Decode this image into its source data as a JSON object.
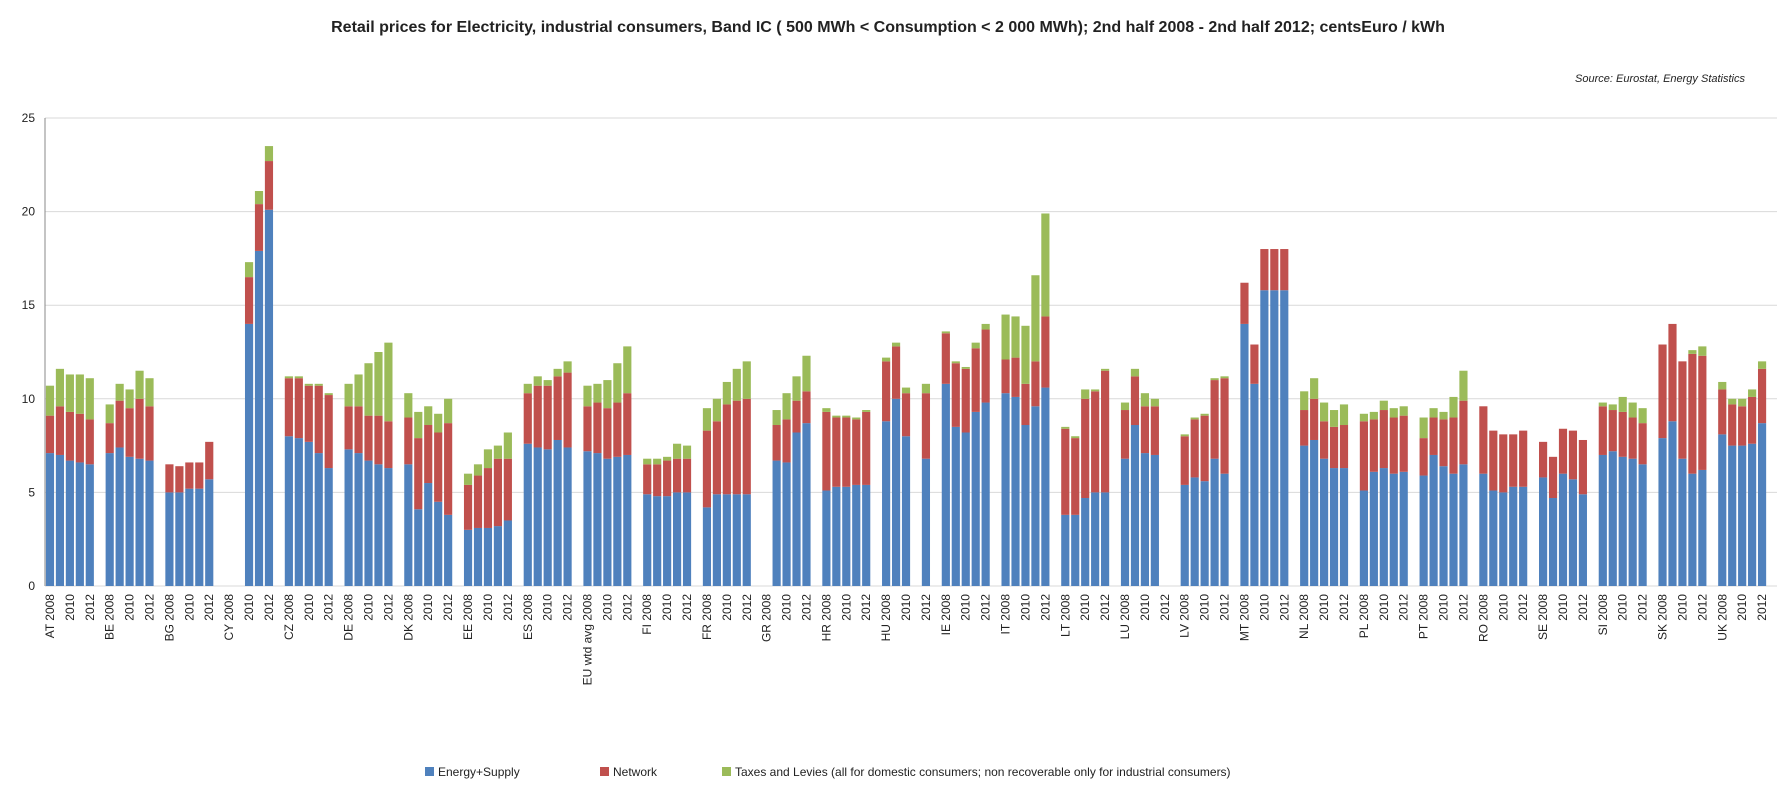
{
  "chart_data": {
    "type": "stacked_bar",
    "title": "Retail prices for Electricity, industrial consumers, Band IC ( 500 MWh < Consumption < 2 000 MWh); 2nd half 2008 - 2nd half 2012; centsEuro / kWh",
    "source": "Source: Eurostat, Energy Statistics",
    "categories": [
      "AT 2008",
      null,
      "2010",
      null,
      "2012",
      null,
      "BE 2008",
      null,
      "2010",
      null,
      "2012",
      null,
      "BG 2008",
      null,
      "2010",
      null,
      "2012",
      null,
      "CY 2008",
      null,
      "2010",
      null,
      "2012",
      null,
      "CZ 2008",
      null,
      "2010",
      null,
      "2012",
      null,
      "DE 2008",
      null,
      "2010",
      null,
      "2012",
      null,
      "DK 2008",
      null,
      "2010",
      null,
      "2012",
      null,
      "EE 2008",
      null,
      "2010",
      null,
      "2012",
      null,
      "ES 2008",
      null,
      "2010",
      null,
      "2012",
      null,
      "EU wtd avg 2008",
      null,
      "2010",
      null,
      "2012",
      null,
      "FI 2008",
      null,
      "2010",
      null,
      "2012",
      null,
      "FR 2008",
      null,
      "2010",
      null,
      "2012",
      null,
      "GR 2008",
      null,
      "2010",
      null,
      "2012",
      null,
      "HR 2008",
      null,
      "2010",
      null,
      "2012",
      null,
      "HU 2008",
      null,
      "2010",
      null,
      "2012",
      null,
      "IE 2008",
      null,
      "2010",
      null,
      "2012",
      null,
      "IT 2008",
      null,
      "2010",
      null,
      "2012",
      null,
      "LT 2008",
      null,
      "2010",
      null,
      "2012",
      null,
      "LU 2008",
      null,
      "2010",
      null,
      "2012",
      null,
      "LV 2008",
      null,
      "2010",
      null,
      "2012",
      null,
      "MT 2008",
      null,
      "2010",
      null,
      "2012",
      null,
      "NL 2008",
      null,
      "2010",
      null,
      "2012",
      null,
      "PL 2008",
      null,
      "2010",
      null,
      "2012",
      null,
      "PT 2008",
      null,
      "2010",
      null,
      "2012",
      null,
      "RO 2008",
      null,
      "2010",
      null,
      "2012",
      null,
      "SE 2008",
      null,
      "2010",
      null,
      "2012",
      null,
      "SI 2008",
      null,
      "2010",
      null,
      "2012",
      null,
      "SK 2008",
      null,
      "2010",
      null,
      "2012",
      null,
      "UK 2008",
      null,
      "2010",
      null,
      "2012",
      null
    ],
    "series": [
      {
        "name": "Energy+Supply",
        "color": "#4f81bd",
        "values": [
          7.1,
          7.0,
          6.7,
          6.6,
          6.5,
          null,
          7.1,
          7.4,
          6.9,
          6.8,
          6.7,
          null,
          5.0,
          5.0,
          5.2,
          5.2,
          5.7,
          null,
          null,
          null,
          14.0,
          17.9,
          20.1,
          null,
          8.0,
          7.9,
          7.7,
          7.1,
          6.3,
          null,
          7.3,
          7.1,
          6.7,
          6.5,
          6.3,
          null,
          6.5,
          4.1,
          5.5,
          4.5,
          3.8,
          null,
          3.0,
          3.1,
          3.1,
          3.2,
          3.5,
          null,
          7.6,
          7.4,
          7.3,
          7.8,
          7.4,
          null,
          7.2,
          7.1,
          6.8,
          6.9,
          7.0,
          null,
          4.9,
          4.8,
          4.8,
          5.0,
          5.0,
          null,
          4.2,
          4.9,
          4.9,
          4.9,
          4.9,
          null,
          null,
          6.7,
          6.6,
          8.2,
          8.7,
          null,
          5.1,
          5.3,
          5.3,
          5.4,
          5.4,
          null,
          8.8,
          10.0,
          8.0,
          null,
          6.8,
          null,
          10.8,
          8.5,
          8.2,
          9.3,
          9.8,
          null,
          10.3,
          10.1,
          8.6,
          9.6,
          10.6,
          null,
          3.8,
          3.8,
          4.7,
          5.0,
          5.0,
          null,
          6.8,
          8.6,
          7.1,
          7.0,
          null,
          null,
          5.4,
          5.8,
          5.6,
          6.8,
          6.0,
          null,
          14.0,
          10.8,
          15.8,
          15.8,
          15.8,
          null,
          7.5,
          7.8,
          6.8,
          6.3,
          6.3,
          null,
          5.1,
          6.1,
          6.3,
          6.0,
          6.1,
          null,
          5.9,
          7.0,
          6.4,
          6.0,
          6.5,
          null,
          6.0,
          5.1,
          5.0,
          5.3,
          5.3,
          null,
          5.8,
          4.7,
          6.0,
          5.7,
          4.9,
          null,
          7.0,
          7.2,
          6.9,
          6.8,
          6.5,
          null,
          7.9,
          8.8,
          6.8,
          6.0,
          6.2,
          null,
          8.1,
          7.5,
          7.5,
          7.6,
          8.7,
          null
        ]
      },
      {
        "name": "Network",
        "color": "#c0504d",
        "values": [
          2.0,
          2.6,
          2.6,
          2.6,
          2.4,
          null,
          1.6,
          2.5,
          2.6,
          3.2,
          2.9,
          null,
          1.5,
          1.4,
          1.4,
          1.4,
          2.0,
          null,
          null,
          null,
          2.5,
          2.5,
          2.6,
          null,
          3.1,
          3.2,
          3.0,
          3.6,
          3.9,
          null,
          2.3,
          2.5,
          2.4,
          2.6,
          2.5,
          null,
          2.5,
          3.8,
          3.1,
          3.7,
          4.9,
          null,
          2.4,
          2.8,
          3.2,
          3.6,
          3.3,
          null,
          2.7,
          3.3,
          3.4,
          3.4,
          4.0,
          null,
          2.4,
          2.7,
          2.7,
          2.9,
          3.3,
          null,
          1.6,
          1.7,
          1.9,
          1.8,
          1.8,
          null,
          4.1,
          3.9,
          4.8,
          5.0,
          5.1,
          null,
          null,
          1.9,
          2.3,
          1.7,
          1.7,
          null,
          4.2,
          3.7,
          3.7,
          3.5,
          3.9,
          null,
          3.2,
          2.8,
          2.3,
          null,
          3.5,
          null,
          2.7,
          3.4,
          3.4,
          3.4,
          3.9,
          null,
          1.8,
          2.1,
          2.2,
          2.4,
          3.8,
          null,
          4.6,
          4.1,
          5.3,
          5.4,
          6.5,
          null,
          2.6,
          2.6,
          2.5,
          2.6,
          null,
          null,
          2.6,
          3.1,
          3.5,
          4.2,
          5.1,
          null,
          2.2,
          2.1,
          2.2,
          2.2,
          2.2,
          null,
          1.9,
          2.2,
          2.0,
          2.2,
          2.3,
          null,
          3.7,
          2.8,
          3.1,
          3.0,
          3.0,
          null,
          2.0,
          2.0,
          2.5,
          3.0,
          3.4,
          null,
          3.6,
          3.2,
          3.1,
          2.8,
          3.0,
          null,
          1.9,
          2.2,
          2.4,
          2.6,
          2.9,
          null,
          2.6,
          2.2,
          2.4,
          2.2,
          2.2,
          null,
          5.0,
          5.2,
          5.2,
          6.4,
          6.1,
          null,
          2.4,
          2.2,
          2.1,
          2.5,
          2.9,
          null
        ]
      },
      {
        "name": "Taxes and Levies (all for domestic consumers; non recoverable only for industrial consumers)",
        "color": "#9bbb59",
        "values": [
          1.6,
          2.0,
          2.0,
          2.1,
          2.2,
          null,
          1.0,
          0.9,
          1.0,
          1.5,
          1.5,
          null,
          0,
          0,
          0,
          0,
          0,
          null,
          null,
          null,
          0.8,
          0.7,
          0.8,
          null,
          0.1,
          0.1,
          0.1,
          0.1,
          0.1,
          null,
          1.2,
          1.7,
          2.8,
          3.4,
          4.2,
          null,
          1.3,
          1.4,
          1.0,
          1.0,
          1.3,
          null,
          0.6,
          0.6,
          1.0,
          0.7,
          1.4,
          null,
          0.5,
          0.5,
          0.3,
          0.4,
          0.6,
          null,
          1.1,
          1.0,
          1.5,
          2.1,
          2.5,
          null,
          0.3,
          0.3,
          0.2,
          0.8,
          0.7,
          null,
          1.2,
          1.2,
          1.2,
          1.7,
          2.0,
          null,
          null,
          0.8,
          1.4,
          1.3,
          1.9,
          null,
          0.2,
          0.1,
          0.1,
          0.1,
          0.1,
          null,
          0.2,
          0.2,
          0.3,
          null,
          0.5,
          null,
          0.1,
          0.1,
          0.1,
          0.3,
          0.3,
          null,
          2.4,
          2.2,
          3.1,
          4.6,
          5.5,
          null,
          0.1,
          0.1,
          0.5,
          0.1,
          0.1,
          null,
          0.4,
          0.4,
          0.7,
          0.4,
          null,
          null,
          0.1,
          0.1,
          0.1,
          0.1,
          0.1,
          null,
          0,
          0,
          0,
          0,
          0,
          null,
          1.0,
          1.1,
          1.0,
          0.9,
          1.1,
          null,
          0.4,
          0.4,
          0.5,
          0.5,
          0.5,
          null,
          1.1,
          0.5,
          0.4,
          1.1,
          1.6,
          null,
          0,
          0,
          0,
          0,
          0,
          null,
          0,
          0,
          0,
          0,
          0,
          null,
          0.2,
          0.3,
          0.8,
          0.8,
          0.8,
          null,
          0,
          0,
          0,
          0.2,
          0.5,
          null,
          0.4,
          0.3,
          0.4,
          0.4,
          0.4,
          null
        ]
      }
    ],
    "ylim": [
      0,
      25
    ],
    "yticks": [
      0,
      5,
      10,
      15,
      20,
      25
    ],
    "grid": true,
    "legend": "bottom"
  }
}
